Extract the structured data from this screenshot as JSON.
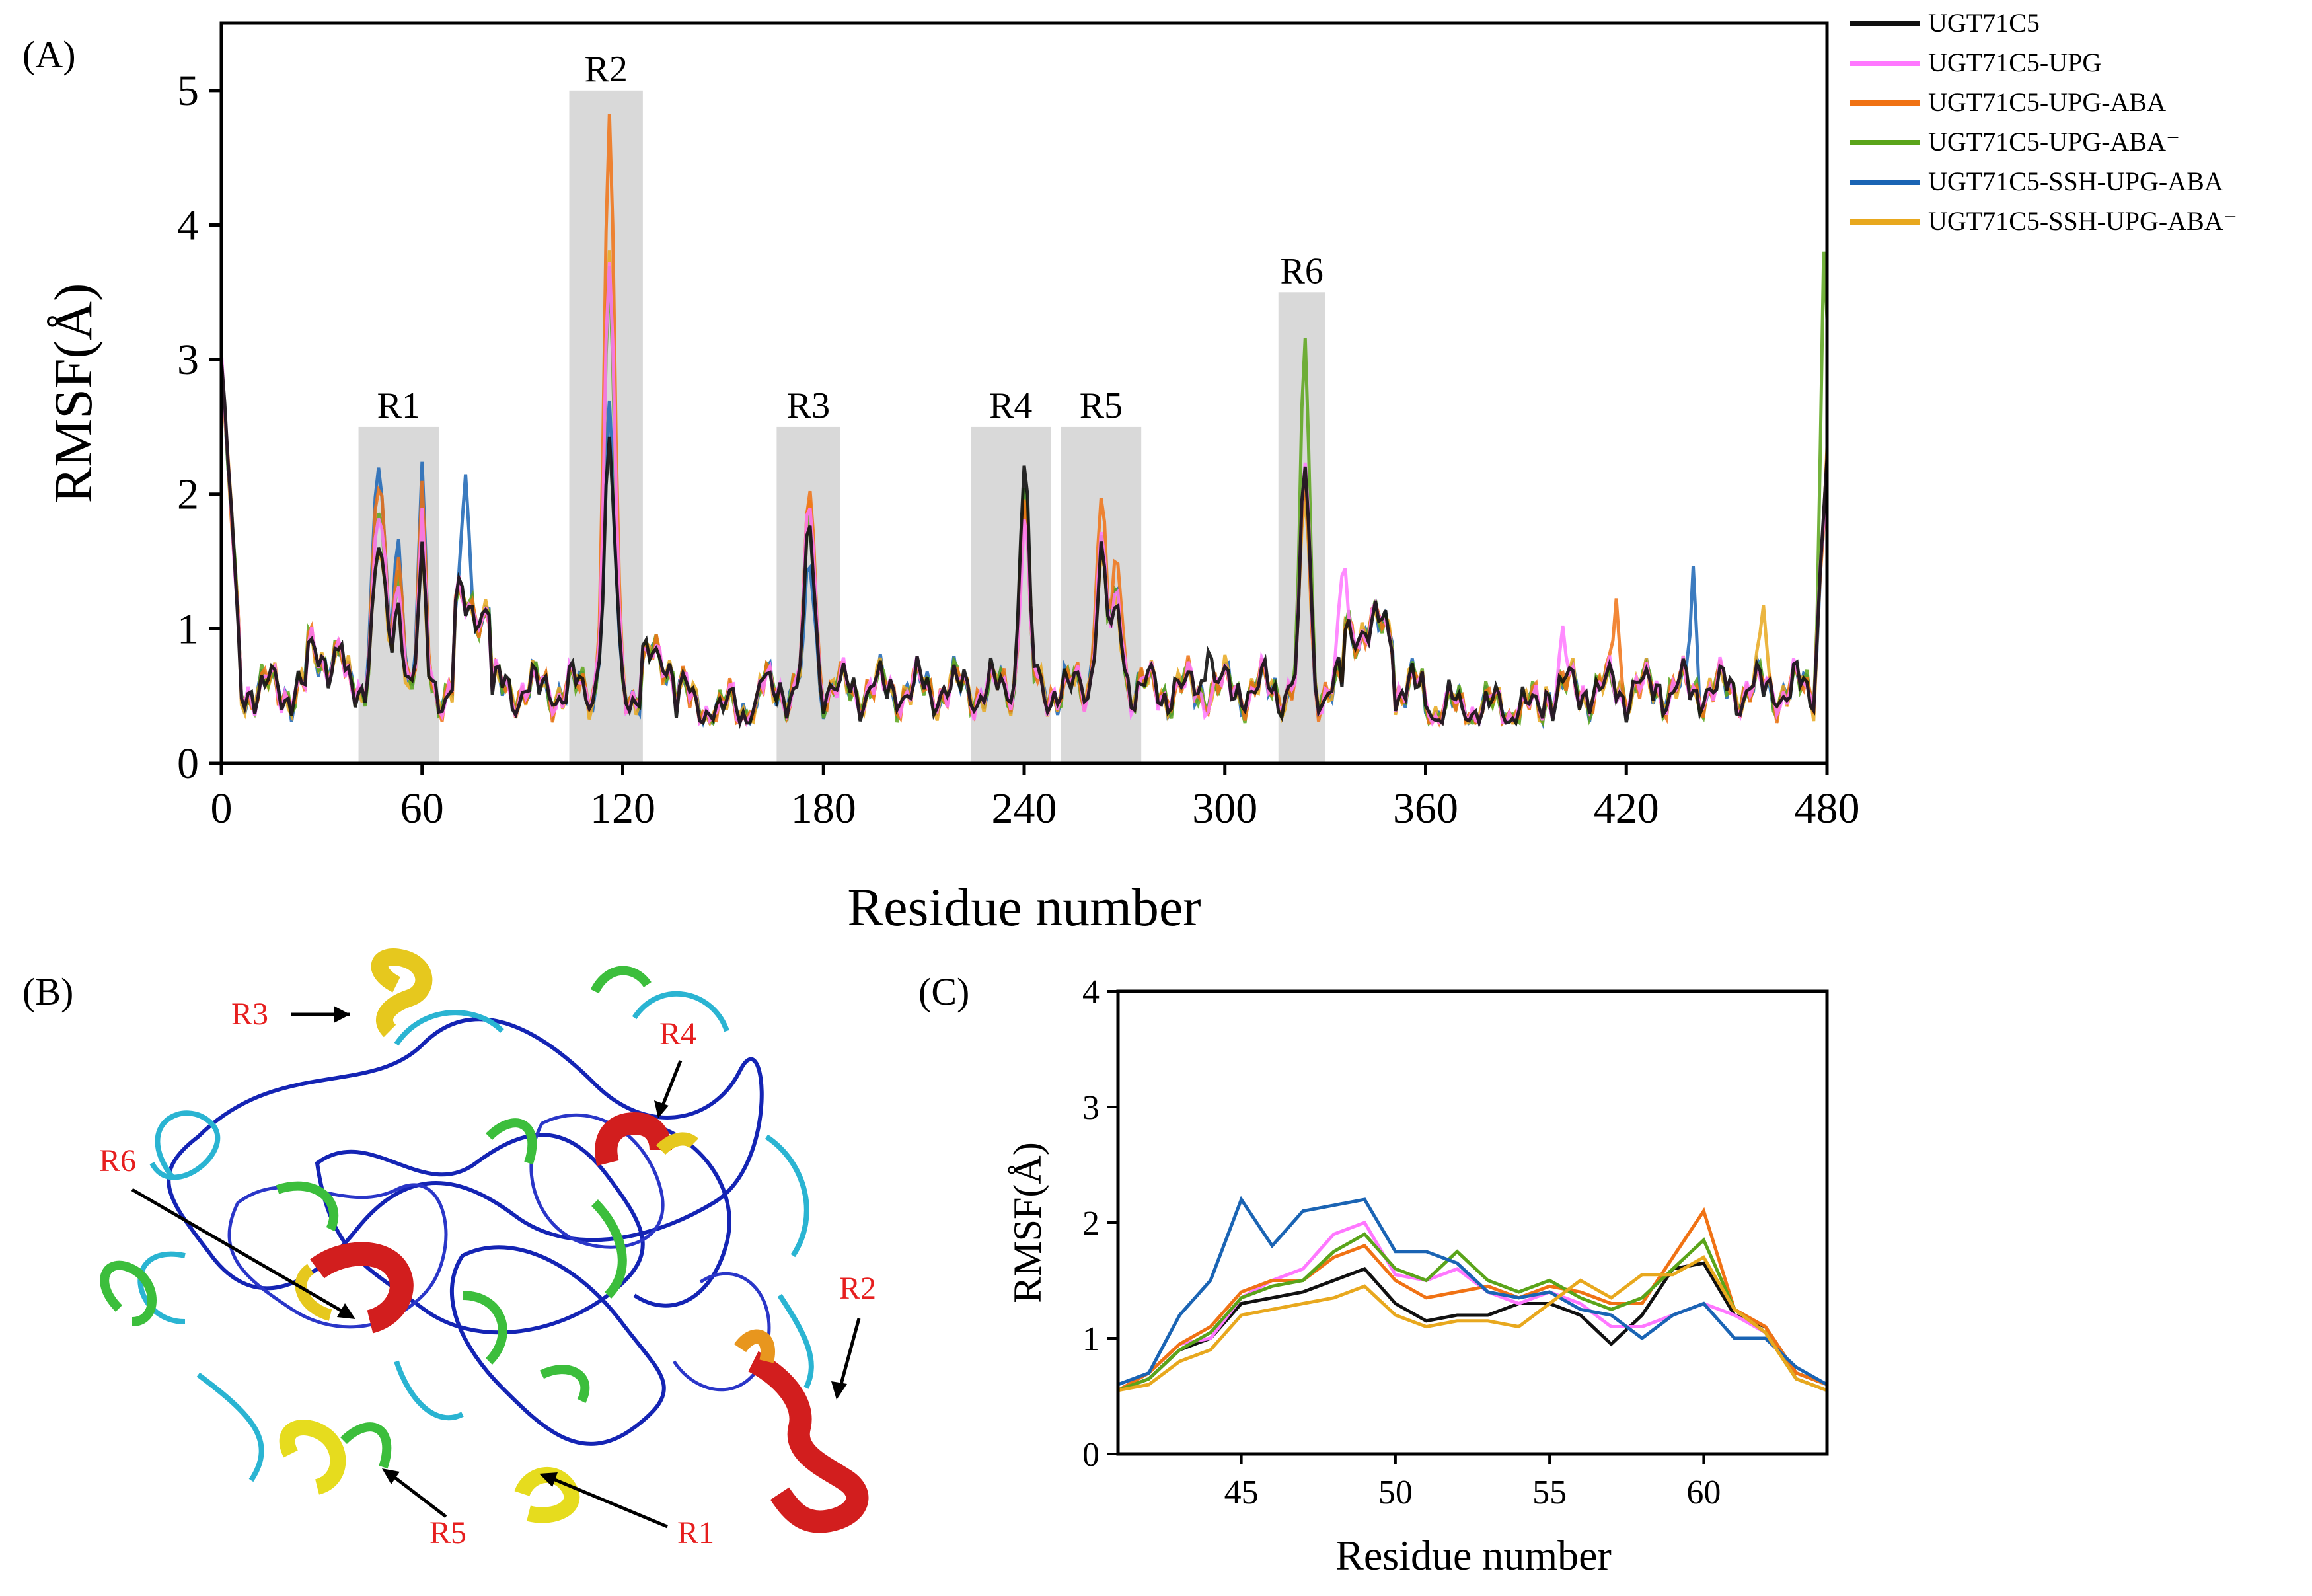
{
  "panels": {
    "a": "(A)",
    "b": "(B)",
    "c": "(C)"
  },
  "colors": {
    "UGT71C5": "#111111",
    "UGT71C5-UPG": "#ff77ff",
    "UGT71C5-UPG-ABA": "#f07214",
    "UGT71C5-UPG-ABA-minus": "#5aa41a",
    "UGT71C5-SSH-UPG-ABA": "#1a64b4",
    "UGT71C5-SSH-UPG-ABA-minus": "#e8a81e",
    "region_fill": "#d9d9d9"
  },
  "chart_data": [
    {
      "id": "A",
      "type": "line",
      "xlabel": "Residue number",
      "ylabel": "RMSF(Å)",
      "xlim": [
        0,
        480
      ],
      "ylim": [
        0,
        5.5
      ],
      "xticks": [
        0,
        60,
        120,
        180,
        240,
        300,
        360,
        420,
        480
      ],
      "yticks": [
        0,
        1,
        2,
        3,
        4,
        5
      ],
      "legend": {
        "position": "outside-right",
        "entries": [
          "UGT71C5",
          "UGT71C5-UPG",
          "UGT71C5-UPG-ABA",
          "UGT71C5-UPG-ABA⁻",
          "UGT71C5-SSH-UPG-ABA",
          "UGT71C5-SSH-UPG-ABA⁻"
        ]
      },
      "regions": [
        {
          "label": "R1",
          "x0": 41,
          "x1": 65,
          "ymax": 2.5
        },
        {
          "label": "R2",
          "x0": 104,
          "x1": 126,
          "ymax": 5.0
        },
        {
          "label": "R3",
          "x0": 166,
          "x1": 185,
          "ymax": 2.5
        },
        {
          "label": "R4",
          "x0": 224,
          "x1": 248,
          "ymax": 2.5
        },
        {
          "label": "R5",
          "x0": 251,
          "x1": 275,
          "ymax": 2.5
        },
        {
          "label": "R6",
          "x0": 316,
          "x1": 330,
          "ymax": 3.5
        }
      ],
      "baseline_x": [
        0,
        3,
        6,
        10,
        12,
        14,
        18,
        22,
        26,
        30,
        33,
        36,
        40,
        43,
        47,
        50,
        53,
        57,
        60,
        63,
        67,
        70,
        73,
        76,
        80,
        84,
        88,
        92,
        96,
        100,
        104,
        108,
        112,
        115,
        118,
        121,
        124,
        128,
        132,
        136,
        140,
        145,
        150,
        155,
        160,
        165,
        168,
        171,
        174,
        177,
        180,
        183,
        186,
        190,
        195,
        200,
        205,
        210,
        215,
        220,
        225,
        228,
        232,
        235,
        238,
        240,
        242,
        245,
        250,
        255,
        258,
        262,
        265,
        268,
        272,
        276,
        280,
        285,
        290,
        293,
        296,
        300,
        305,
        310,
        315,
        318,
        321,
        324,
        327,
        330,
        334,
        338,
        342,
        346,
        350,
        355,
        360,
        365,
        370,
        375,
        380,
        385,
        390,
        395,
        398,
        401,
        405,
        410,
        415,
        418,
        421,
        425,
        430,
        435,
        438,
        441,
        445,
        450,
        455,
        458,
        461,
        465,
        470,
        474,
        478,
        480
      ],
      "series": [
        {
          "name": "UGT71C5",
          "scale": {
            "R1": 0.75,
            "R2": 0.5,
            "R3": 0.85,
            "R4": 1.0,
            "R5": 0.8,
            "R6": 0.72
          },
          "spikes": {
            "295": 1.1,
            "372": 0.48
          }
        },
        {
          "name": "UGT71C5-UPG",
          "scale": {
            "R1": 0.85,
            "R2": 0.78,
            "R3": 0.95,
            "R4": 0.8,
            "R5": 0.85,
            "R6": 0.72
          },
          "spikes": {
            "335": 1.45,
            "401": 0.95
          }
        },
        {
          "name": "UGT71C5-UPG-ABA",
          "scale": {
            "R1": 0.95,
            "R2": 1.0,
            "R3": 1.0,
            "R4": 0.85,
            "R5": 1.0,
            "R6": 0.68
          },
          "spikes": {
            "417": 1.35
          }
        },
        {
          "name": "UGT71C5-UPG-ABA⁻",
          "scale": {
            "R1": 0.85,
            "R2": 0.75,
            "R3": 0.9,
            "R4": 0.9,
            "R5": 0.85,
            "R6": 1.0
          },
          "spikes": {
            "479": 2.6
          }
        },
        {
          "name": "UGT71C5-SSH-UPG-ABA",
          "scale": {
            "R1": 1.0,
            "R2": 0.55,
            "R3": 0.7,
            "R4": 0.9,
            "R5": 0.85,
            "R6": 0.68
          },
          "spikes": {
            "73": 1.6,
            "440": 1.45
          }
        },
        {
          "name": "UGT71C5-SSH-UPG-ABA⁻",
          "scale": {
            "R1": 0.75,
            "R2": 0.8,
            "R3": 0.95,
            "R4": 0.85,
            "R5": 0.8,
            "R6": 0.65
          },
          "spikes": {
            "461": 1.2
          }
        }
      ]
    },
    {
      "id": "B",
      "type": "structure-image",
      "labels": [
        "R3",
        "R4",
        "R6",
        "R2",
        "R5",
        "R1"
      ]
    },
    {
      "id": "C",
      "type": "line",
      "xlabel": "Residue number",
      "ylabel": "RMSF(Å)",
      "xlim": [
        41,
        64
      ],
      "ylim": [
        0,
        4
      ],
      "xticks": [
        45,
        50,
        55,
        60
      ],
      "yticks": [
        0,
        1,
        2,
        3,
        4
      ],
      "x": [
        41,
        42,
        43,
        44,
        45,
        46,
        47,
        48,
        49,
        50,
        51,
        52,
        53,
        54,
        55,
        56,
        57,
        58,
        59,
        60,
        61,
        62,
        63,
        64
      ],
      "series": [
        {
          "name": "UGT71C5",
          "values": [
            0.55,
            0.65,
            0.9,
            1.0,
            1.3,
            1.35,
            1.4,
            1.5,
            1.6,
            1.3,
            1.15,
            1.2,
            1.2,
            1.3,
            1.3,
            1.2,
            0.95,
            1.2,
            1.6,
            1.65,
            1.2,
            1.1,
            0.7,
            0.6
          ]
        },
        {
          "name": "UGT71C5-UPG",
          "values": [
            0.55,
            0.7,
            0.95,
            1.0,
            1.35,
            1.5,
            1.6,
            1.9,
            2.0,
            1.55,
            1.5,
            1.6,
            1.4,
            1.3,
            1.4,
            1.3,
            1.1,
            1.1,
            1.2,
            1.3,
            1.2,
            1.05,
            0.65,
            0.55
          ]
        },
        {
          "name": "UGT71C5-UPG-ABA",
          "values": [
            0.55,
            0.7,
            0.95,
            1.1,
            1.4,
            1.5,
            1.5,
            1.7,
            1.8,
            1.5,
            1.35,
            1.4,
            1.45,
            1.35,
            1.45,
            1.4,
            1.3,
            1.3,
            1.7,
            2.1,
            1.25,
            1.1,
            0.7,
            0.6
          ]
        },
        {
          "name": "UGT71C5-UPG-ABA⁻",
          "values": [
            0.55,
            0.65,
            0.9,
            1.05,
            1.35,
            1.45,
            1.5,
            1.75,
            1.9,
            1.6,
            1.5,
            1.75,
            1.5,
            1.4,
            1.5,
            1.35,
            1.25,
            1.35,
            1.6,
            1.85,
            1.25,
            1.05,
            0.65,
            0.55
          ]
        },
        {
          "name": "UGT71C5-SSH-UPG-ABA",
          "values": [
            0.6,
            0.7,
            1.2,
            1.5,
            2.2,
            1.8,
            2.1,
            2.15,
            2.2,
            1.75,
            1.75,
            1.65,
            1.4,
            1.35,
            1.4,
            1.25,
            1.2,
            1.0,
            1.2,
            1.3,
            1.0,
            1.0,
            0.75,
            0.6
          ]
        },
        {
          "name": "UGT71C5-SSH-UPG-ABA⁻",
          "values": [
            0.55,
            0.6,
            0.8,
            0.9,
            1.2,
            1.25,
            1.3,
            1.35,
            1.45,
            1.2,
            1.1,
            1.15,
            1.15,
            1.1,
            1.3,
            1.5,
            1.35,
            1.55,
            1.55,
            1.7,
            1.25,
            1.05,
            0.65,
            0.55
          ]
        }
      ]
    }
  ]
}
